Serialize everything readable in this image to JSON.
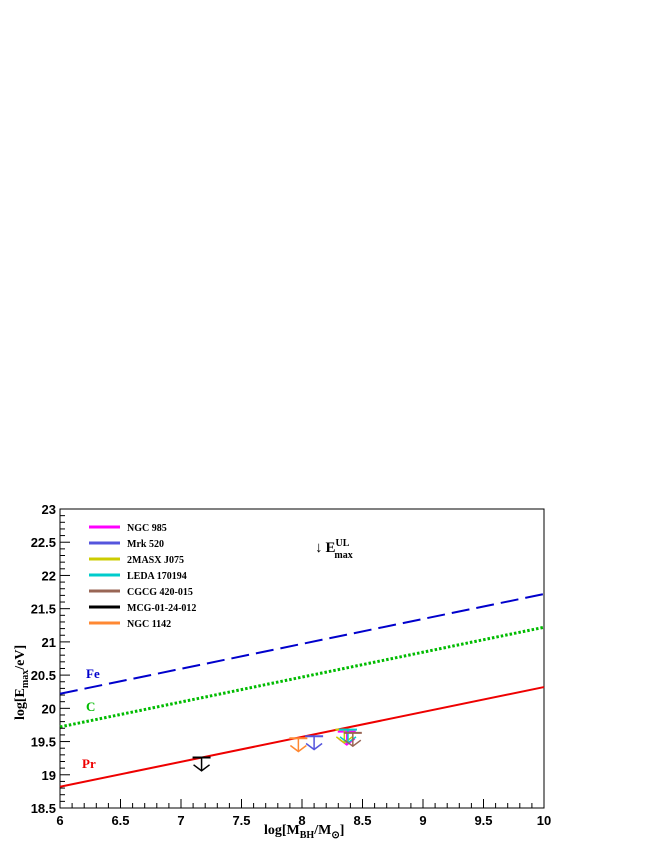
{
  "chart_data": {
    "type": "line",
    "xlim": [
      6,
      10
    ],
    "ylim": [
      18.5,
      23
    ],
    "x_ticks": [
      "6",
      "6.5",
      "7",
      "7.5",
      "8",
      "8.5",
      "9",
      "9.5",
      "10"
    ],
    "y_ticks": [
      "18.5",
      "19",
      "19.5",
      "20",
      "20.5",
      "21",
      "21.5",
      "22",
      "22.5",
      "23"
    ],
    "xlabel": {
      "main": "log[M",
      "sub1": "BH",
      "mid": "/M",
      "sub2": "⊙",
      "end": "]"
    },
    "ylabel": {
      "main": "log[E",
      "sub": "max",
      "end": "/eV]"
    },
    "annotation": {
      "arrow": "↓",
      "main": "E",
      "sup": "UL",
      "sub": "max"
    },
    "lines": [
      {
        "name": "Fe",
        "color": "#0000cc",
        "style": "dashed",
        "x": [
          6,
          10
        ],
        "y": [
          20.22,
          21.72
        ]
      },
      {
        "name": "C",
        "color": "#00bb00",
        "style": "dotted",
        "x": [
          6,
          10
        ],
        "y": [
          19.72,
          21.22
        ]
      },
      {
        "name": "Pr",
        "color": "#ee0000",
        "style": "solid",
        "x": [
          6,
          10
        ],
        "y": [
          18.82,
          20.32
        ]
      }
    ],
    "series": [
      {
        "name": "NGC 985",
        "color": "#ff00ff",
        "x": 8.37,
        "y": 19.65
      },
      {
        "name": "Mrk 520",
        "color": "#5555dd",
        "x": 8.1,
        "y": 19.58
      },
      {
        "name": "2MASX J075",
        "color": "#cccc00",
        "x": 8.35,
        "y": 19.68
      },
      {
        "name": "LEDA 170194",
        "color": "#00cccc",
        "x": 8.38,
        "y": 19.68
      },
      {
        "name": "CGCG 420-015",
        "color": "#996655",
        "x": 8.42,
        "y": 19.63
      },
      {
        "name": "MCG-01-24-012",
        "color": "#000000",
        "x": 7.17,
        "y": 19.26
      },
      {
        "name": "NGC 1142",
        "color": "#ff8833",
        "x": 7.97,
        "y": 19.55
      }
    ],
    "upper_limit_arrow_length": 0.2,
    "grid": false,
    "legend": "top-left"
  }
}
